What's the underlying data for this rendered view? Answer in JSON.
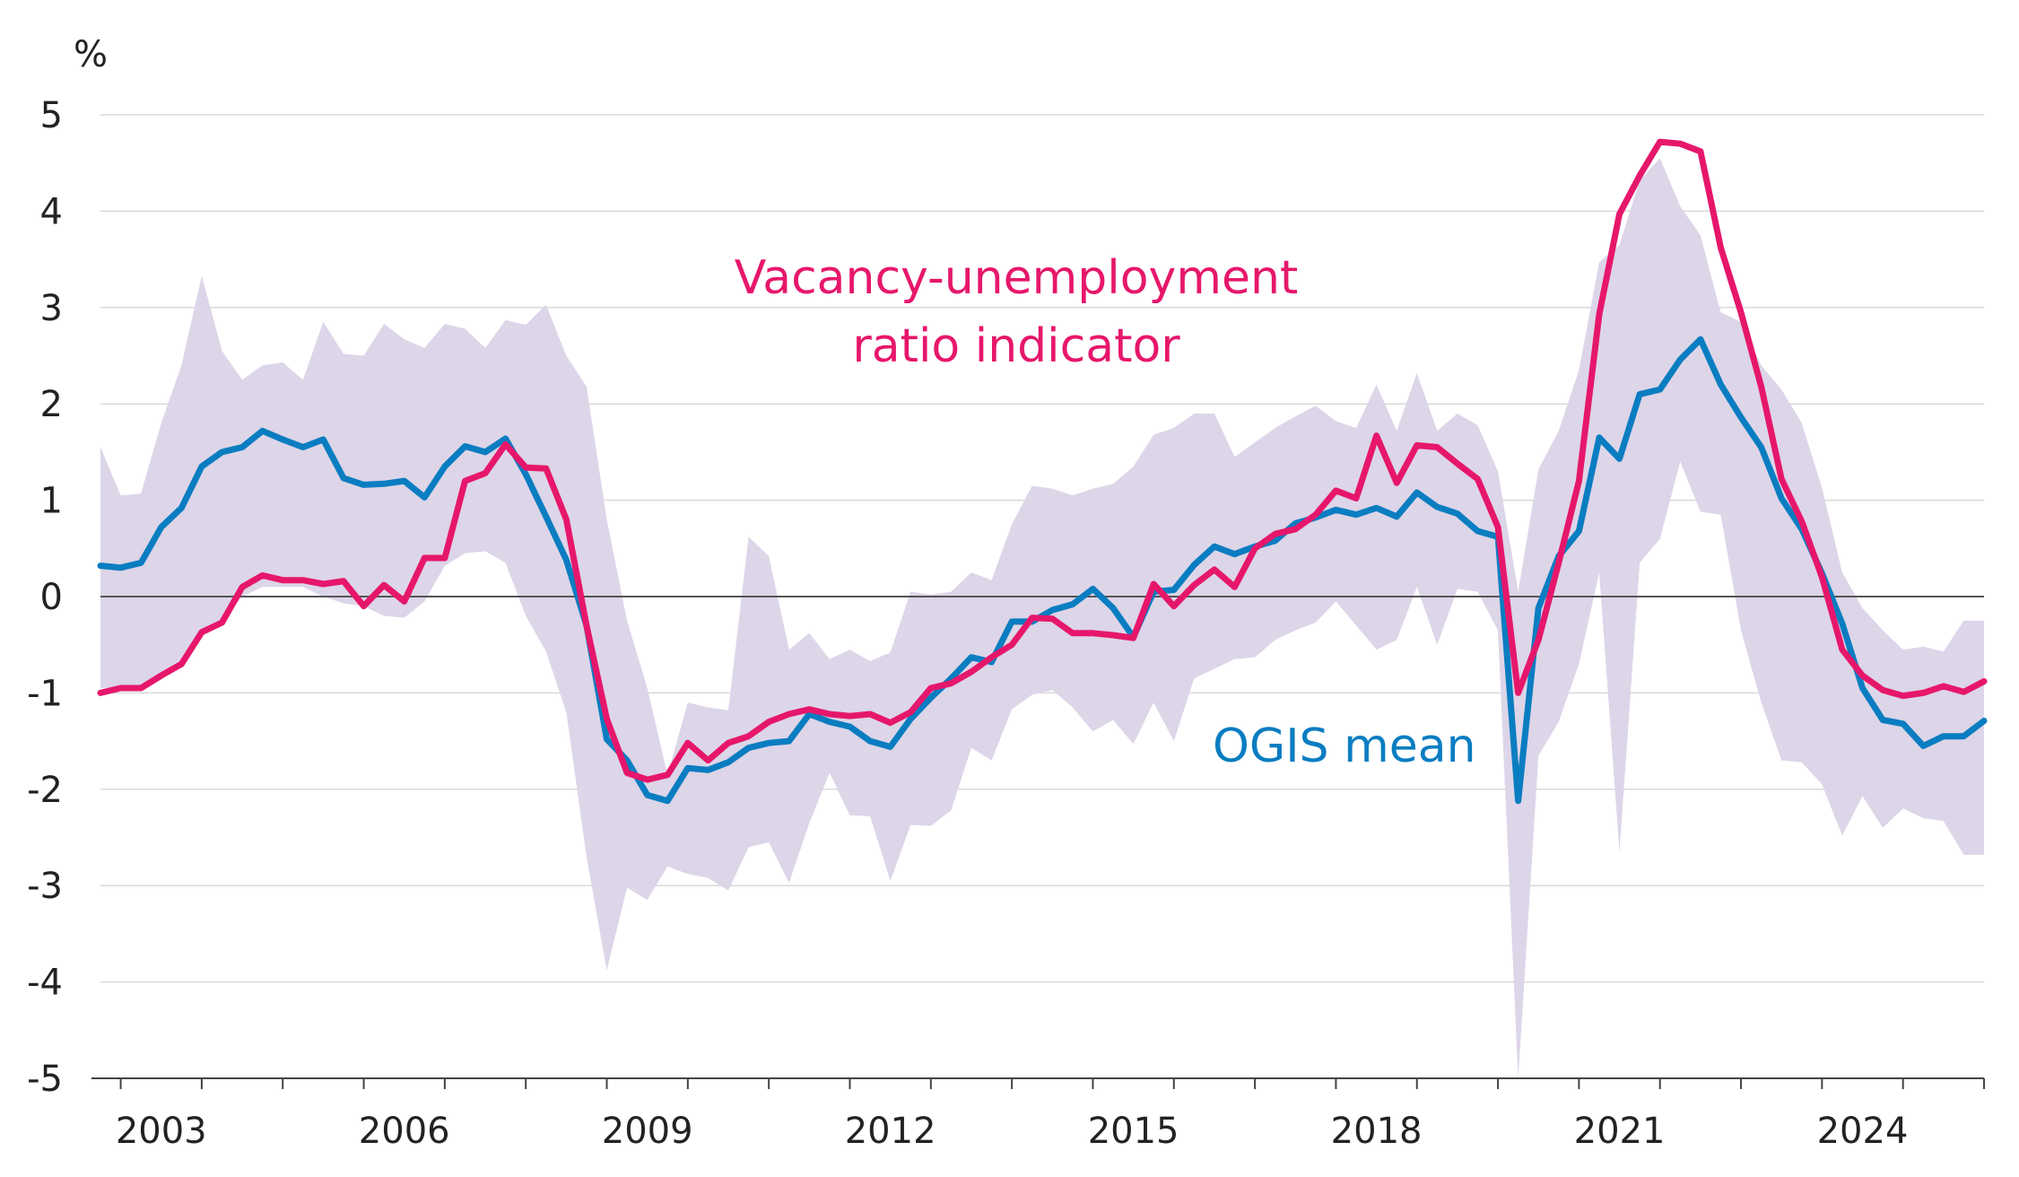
{
  "chart_data": {
    "type": "line",
    "title": "",
    "xlabel": "",
    "ylabel": "%",
    "ylim": [
      -5,
      5
    ],
    "yticks": [
      "5",
      "4",
      "3",
      "2",
      "1",
      "0",
      "-1",
      "-2",
      "-3",
      "-4",
      "-5"
    ],
    "yticks_values": [
      5,
      4,
      3,
      2,
      1,
      0,
      -1,
      -2,
      -3,
      -4,
      -5
    ],
    "xlim": [
      2002.75,
      2026.0
    ],
    "xticks": [
      "2003",
      "2006",
      "2009",
      "2012",
      "2015",
      "2018",
      "2021",
      "2024"
    ],
    "xticks_values": [
      2003.5,
      2006.5,
      2009.5,
      2012.5,
      2015.5,
      2018.5,
      2021.5,
      2024.5
    ],
    "grid": "horizontal",
    "legend": "none",
    "colors": {
      "ogis": "#0a7dc1",
      "vu": "#e6176b",
      "band": "#ddd5e8",
      "grid": "#d9d9d9",
      "axis": "#444444"
    },
    "annotations": [
      {
        "text": "Vacancy-unemployment",
        "series": "vu"
      },
      {
        "text": "ratio indicator",
        "series": "vu"
      },
      {
        "text": "OGIS mean",
        "series": "ogis"
      }
    ],
    "series": [
      {
        "name": "OGIS mean",
        "color": "#0a7dc1",
        "x": [
          2002.75,
          2003.0,
          2003.25,
          2003.5,
          2003.75,
          2004.0,
          2004.25,
          2004.5,
          2004.75,
          2005.0,
          2005.25,
          2005.5,
          2005.75,
          2006.0,
          2006.25,
          2006.5,
          2006.75,
          2007.0,
          2007.25,
          2007.5,
          2007.75,
          2008.0,
          2008.25,
          2008.5,
          2008.75,
          2009.0,
          2009.25,
          2009.5,
          2009.75,
          2010.0,
          2010.25,
          2010.5,
          2010.75,
          2011.0,
          2011.25,
          2011.5,
          2011.75,
          2012.0,
          2012.25,
          2012.5,
          2012.75,
          2013.0,
          2013.25,
          2013.5,
          2013.75,
          2014.0,
          2014.25,
          2014.5,
          2014.75,
          2015.0,
          2015.25,
          2015.5,
          2015.75,
          2016.0,
          2016.25,
          2016.5,
          2016.75,
          2017.0,
          2017.25,
          2017.5,
          2017.75,
          2018.0,
          2018.25,
          2018.5,
          2018.75,
          2019.0,
          2019.25,
          2019.5,
          2019.75,
          2020.0,
          2020.25,
          2020.5,
          2020.75,
          2021.0,
          2021.25,
          2021.5,
          2021.75,
          2022.0,
          2022.25,
          2022.5,
          2022.75,
          2023.0,
          2023.25,
          2023.5,
          2023.75,
          2024.0,
          2024.25,
          2024.5,
          2024.75,
          2025.0,
          2025.25,
          2025.5,
          2025.75,
          2026.0
        ],
        "values": [
          0.32,
          0.3,
          0.35,
          0.72,
          0.92,
          1.35,
          1.5,
          1.55,
          1.72,
          1.63,
          1.55,
          1.63,
          1.23,
          1.16,
          1.17,
          1.2,
          1.03,
          1.35,
          1.56,
          1.5,
          1.64,
          1.27,
          0.83,
          0.38,
          -0.3,
          -1.48,
          -1.7,
          -2.06,
          -2.12,
          -1.78,
          -1.8,
          -1.72,
          -1.57,
          -1.52,
          -1.5,
          -1.22,
          -1.3,
          -1.35,
          -1.5,
          -1.56,
          -1.27,
          -1.05,
          -0.85,
          -0.63,
          -0.68,
          -0.26,
          -0.26,
          -0.14,
          -0.08,
          0.08,
          -0.12,
          -0.42,
          0.05,
          0.07,
          0.33,
          0.52,
          0.44,
          0.52,
          0.58,
          0.76,
          0.82,
          0.9,
          0.85,
          0.92,
          0.83,
          1.08,
          0.93,
          0.86,
          0.68,
          0.62,
          -2.12,
          -0.12,
          0.42,
          0.68,
          1.65,
          1.43,
          2.1,
          2.15,
          2.46,
          2.67,
          2.2,
          1.86,
          1.55,
          1.02,
          0.7,
          0.24,
          -0.28,
          -0.95,
          -1.28,
          -1.32,
          -1.55,
          -1.45,
          -1.45,
          -1.29
        ]
      },
      {
        "name": "Vacancy-unemployment ratio indicator",
        "color": "#e6176b",
        "x": [
          2002.75,
          2003.0,
          2003.25,
          2003.5,
          2003.75,
          2004.0,
          2004.25,
          2004.5,
          2004.75,
          2005.0,
          2005.25,
          2005.5,
          2005.75,
          2006.0,
          2006.25,
          2006.5,
          2006.75,
          2007.0,
          2007.25,
          2007.5,
          2007.75,
          2008.0,
          2008.25,
          2008.5,
          2008.75,
          2009.0,
          2009.25,
          2009.5,
          2009.75,
          2010.0,
          2010.25,
          2010.5,
          2010.75,
          2011.0,
          2011.25,
          2011.5,
          2011.75,
          2012.0,
          2012.25,
          2012.5,
          2012.75,
          2013.0,
          2013.25,
          2013.5,
          2013.75,
          2014.0,
          2014.25,
          2014.5,
          2014.75,
          2015.0,
          2015.25,
          2015.5,
          2015.75,
          2016.0,
          2016.25,
          2016.5,
          2016.75,
          2017.0,
          2017.25,
          2017.5,
          2017.75,
          2018.0,
          2018.25,
          2018.5,
          2018.75,
          2019.0,
          2019.25,
          2019.5,
          2019.75,
          2020.0,
          2020.25,
          2020.5,
          2020.75,
          2021.0,
          2021.25,
          2021.5,
          2021.75,
          2022.0,
          2022.25,
          2022.5,
          2022.75,
          2023.0,
          2023.25,
          2023.5,
          2023.75,
          2024.0,
          2024.25,
          2024.5,
          2024.75,
          2025.0,
          2025.25,
          2025.5,
          2025.75,
          2026.0
        ],
        "values": [
          -1.0,
          -0.95,
          -0.95,
          -0.82,
          -0.7,
          -0.37,
          -0.27,
          0.1,
          0.22,
          0.17,
          0.17,
          0.13,
          0.16,
          -0.1,
          0.12,
          -0.05,
          0.4,
          0.4,
          1.2,
          1.28,
          1.58,
          1.34,
          1.33,
          0.8,
          -0.3,
          -1.27,
          -1.83,
          -1.9,
          -1.85,
          -1.52,
          -1.7,
          -1.52,
          -1.45,
          -1.3,
          -1.22,
          -1.17,
          -1.22,
          -1.24,
          -1.22,
          -1.31,
          -1.2,
          -0.95,
          -0.9,
          -0.78,
          -0.63,
          -0.5,
          -0.22,
          -0.23,
          -0.38,
          -0.38,
          -0.4,
          -0.43,
          0.13,
          -0.1,
          0.12,
          0.28,
          0.1,
          0.5,
          0.65,
          0.7,
          0.85,
          1.1,
          1.02,
          1.67,
          1.18,
          1.57,
          1.55,
          1.38,
          1.22,
          0.72,
          -1.0,
          -0.45,
          0.35,
          1.2,
          2.93,
          3.97,
          4.37,
          4.72,
          4.7,
          4.62,
          3.62,
          2.95,
          2.18,
          1.22,
          0.78,
          0.2,
          -0.55,
          -0.82,
          -0.97,
          -1.03,
          -1.0,
          -0.93,
          -0.99,
          -0.88
        ]
      }
    ],
    "band": {
      "name": "",
      "x": [
        2002.75,
        2003.0,
        2003.25,
        2003.5,
        2003.75,
        2004.0,
        2004.25,
        2004.5,
        2004.75,
        2005.0,
        2005.25,
        2005.5,
        2005.75,
        2006.0,
        2006.25,
        2006.5,
        2006.75,
        2007.0,
        2007.25,
        2007.5,
        2007.75,
        2008.0,
        2008.25,
        2008.5,
        2008.75,
        2009.0,
        2009.25,
        2009.5,
        2009.75,
        2010.0,
        2010.25,
        2010.5,
        2010.75,
        2011.0,
        2011.25,
        2011.5,
        2011.75,
        2012.0,
        2012.25,
        2012.5,
        2012.75,
        2013.0,
        2013.25,
        2013.5,
        2013.75,
        2014.0,
        2014.25,
        2014.5,
        2014.75,
        2015.0,
        2015.25,
        2015.5,
        2015.75,
        2016.0,
        2016.25,
        2016.5,
        2016.75,
        2017.0,
        2017.25,
        2017.5,
        2017.75,
        2018.0,
        2018.25,
        2018.5,
        2018.75,
        2019.0,
        2019.25,
        2019.5,
        2019.75,
        2020.0,
        2020.25,
        2020.5,
        2020.75,
        2021.0,
        2021.25,
        2021.5,
        2021.75,
        2022.0,
        2022.25,
        2022.5,
        2022.75,
        2023.0,
        2023.25,
        2023.5,
        2023.75,
        2024.0,
        2024.25,
        2024.5,
        2024.75,
        2025.0,
        2025.25,
        2025.5,
        2025.75,
        2026.0
      ],
      "upper": [
        1.55,
        1.05,
        1.07,
        1.8,
        2.4,
        3.33,
        2.55,
        2.25,
        2.4,
        2.43,
        2.25,
        2.85,
        2.52,
        2.5,
        2.83,
        2.67,
        2.58,
        2.83,
        2.78,
        2.58,
        2.87,
        2.82,
        3.03,
        2.5,
        2.18,
        0.8,
        -0.25,
        -0.95,
        -1.85,
        -1.1,
        -1.15,
        -1.18,
        0.62,
        0.42,
        -0.55,
        -0.38,
        -0.65,
        -0.55,
        -0.67,
        -0.58,
        0.05,
        0.02,
        0.05,
        0.25,
        0.17,
        0.75,
        1.15,
        1.12,
        1.05,
        1.12,
        1.17,
        1.35,
        1.68,
        1.75,
        1.9,
        1.9,
        1.45,
        1.6,
        1.75,
        1.87,
        1.98,
        1.82,
        1.75,
        2.2,
        1.72,
        2.32,
        1.72,
        1.9,
        1.78,
        1.3,
        0.05,
        1.32,
        1.72,
        2.35,
        3.47,
        3.65,
        4.32,
        4.55,
        4.05,
        3.75,
        2.95,
        2.85,
        2.4,
        2.15,
        1.8,
        1.13,
        0.25,
        -0.12,
        -0.35,
        -0.55,
        -0.52,
        -0.57,
        -0.25,
        -0.25
      ],
      "lower": [
        -0.95,
        -0.95,
        -0.95,
        -0.82,
        -0.7,
        -0.37,
        -0.27,
        0.0,
        0.1,
        0.1,
        0.1,
        0.0,
        -0.07,
        -0.1,
        -0.2,
        -0.22,
        -0.05,
        0.32,
        0.45,
        0.47,
        0.35,
        -0.2,
        -0.57,
        -1.2,
        -2.7,
        -3.88,
        -3.02,
        -3.15,
        -2.8,
        -2.88,
        -2.92,
        -3.05,
        -2.6,
        -2.55,
        -2.97,
        -2.35,
        -1.83,
        -2.27,
        -2.28,
        -2.95,
        -2.37,
        -2.38,
        -2.22,
        -1.57,
        -1.7,
        -1.17,
        -1.02,
        -0.97,
        -1.15,
        -1.4,
        -1.28,
        -1.53,
        -1.1,
        -1.5,
        -0.85,
        -0.75,
        -0.65,
        -0.63,
        -0.45,
        -0.35,
        -0.27,
        -0.05,
        -0.3,
        -0.55,
        -0.45,
        0.1,
        -0.5,
        0.08,
        0.05,
        -0.35,
        -5.0,
        -1.65,
        -1.3,
        -0.7,
        0.25,
        -2.65,
        0.35,
        0.6,
        1.4,
        0.88,
        0.85,
        -0.35,
        -1.1,
        -1.7,
        -1.72,
        -1.95,
        -2.48,
        -2.07,
        -2.4,
        -2.2,
        -2.3,
        -2.33,
        -2.68,
        -2.68
      ]
    }
  }
}
